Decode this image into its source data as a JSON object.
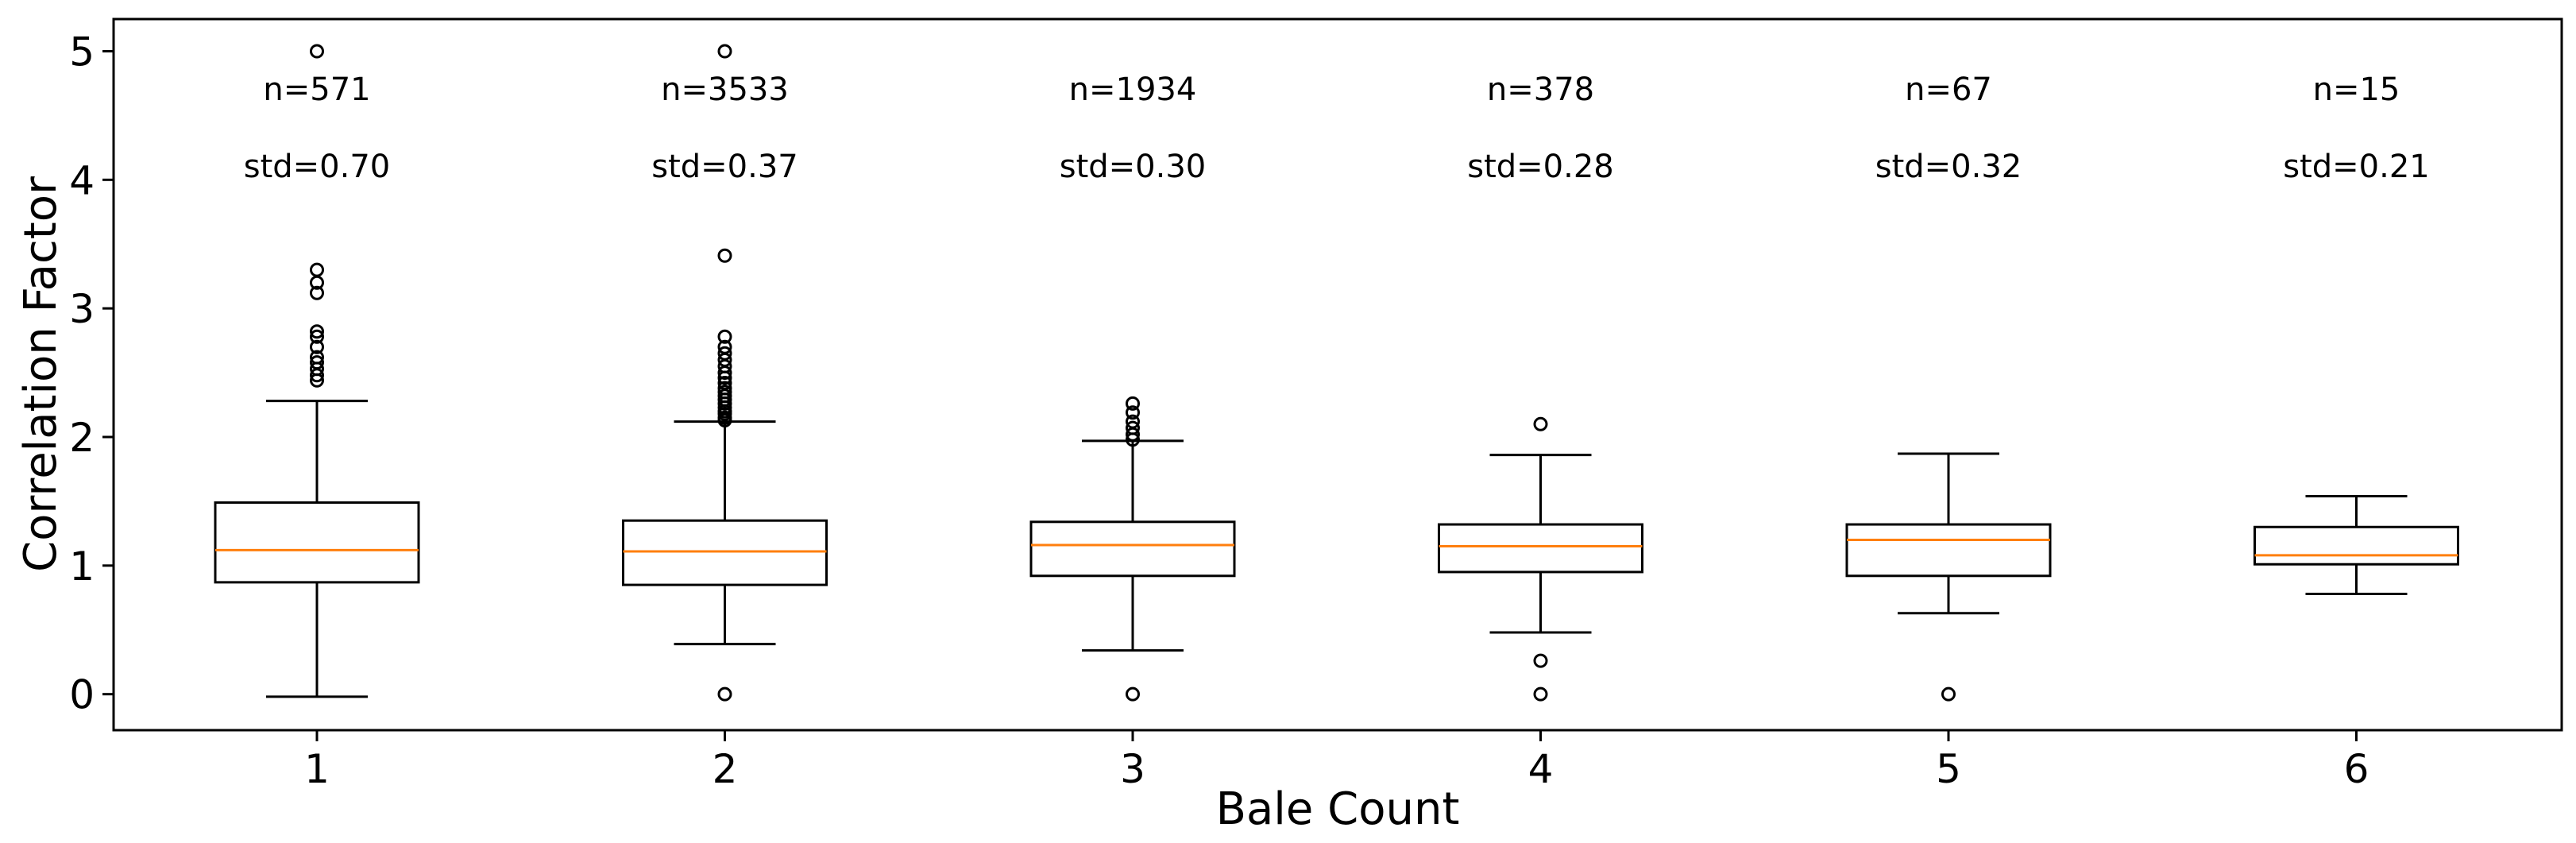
{
  "chart_data": {
    "type": "box",
    "title": "",
    "xlabel": "Bale Count",
    "ylabel": "Correlation Factor",
    "ylim": [
      -0.28,
      5.25
    ],
    "yticks": [
      0,
      1,
      2,
      3,
      4,
      5
    ],
    "grid": false,
    "colors": {
      "box": "#000000",
      "median": "#ff7f0e"
    },
    "categories": [
      "1",
      "2",
      "3",
      "4",
      "5",
      "6"
    ],
    "boxes": [
      {
        "label": "1",
        "n_label": "n=571",
        "std_label": "std=0.70",
        "whislo": -0.02,
        "q1": 0.87,
        "med": 1.12,
        "q3": 1.49,
        "whishi": 2.28,
        "fliers": [
          2.44,
          2.48,
          2.53,
          2.58,
          2.62,
          2.7,
          2.78,
          2.82,
          3.12,
          3.2,
          3.3,
          5.0
        ]
      },
      {
        "label": "2",
        "n_label": "n=3533",
        "std_label": "std=0.37",
        "whislo": 0.39,
        "q1": 0.85,
        "med": 1.11,
        "q3": 1.35,
        "whishi": 2.12,
        "fliers": [
          0.0,
          2.13,
          2.15,
          2.18,
          2.2,
          2.23,
          2.26,
          2.29,
          2.32,
          2.35,
          2.38,
          2.42,
          2.46,
          2.5,
          2.55,
          2.6,
          2.65,
          2.7,
          2.78,
          3.41,
          5.0
        ]
      },
      {
        "label": "3",
        "n_label": "n=1934",
        "std_label": "std=0.30",
        "whislo": 0.34,
        "q1": 0.92,
        "med": 1.16,
        "q3": 1.34,
        "whishi": 1.97,
        "fliers": [
          0.0,
          1.98,
          2.02,
          2.07,
          2.12,
          2.19,
          2.26
        ]
      },
      {
        "label": "4",
        "n_label": "n=378",
        "std_label": "std=0.28",
        "whislo": 0.48,
        "q1": 0.95,
        "med": 1.15,
        "q3": 1.32,
        "whishi": 1.86,
        "fliers": [
          0.0,
          0.26,
          2.1
        ]
      },
      {
        "label": "5",
        "n_label": "n=67",
        "std_label": "std=0.32",
        "whislo": 0.63,
        "q1": 0.92,
        "med": 1.2,
        "q3": 1.32,
        "whishi": 1.87,
        "fliers": [
          0.0
        ]
      },
      {
        "label": "6",
        "n_label": "n=15",
        "std_label": "std=0.21",
        "whislo": 0.78,
        "q1": 1.01,
        "med": 1.08,
        "q3": 1.3,
        "whishi": 1.54,
        "fliers": []
      }
    ]
  }
}
